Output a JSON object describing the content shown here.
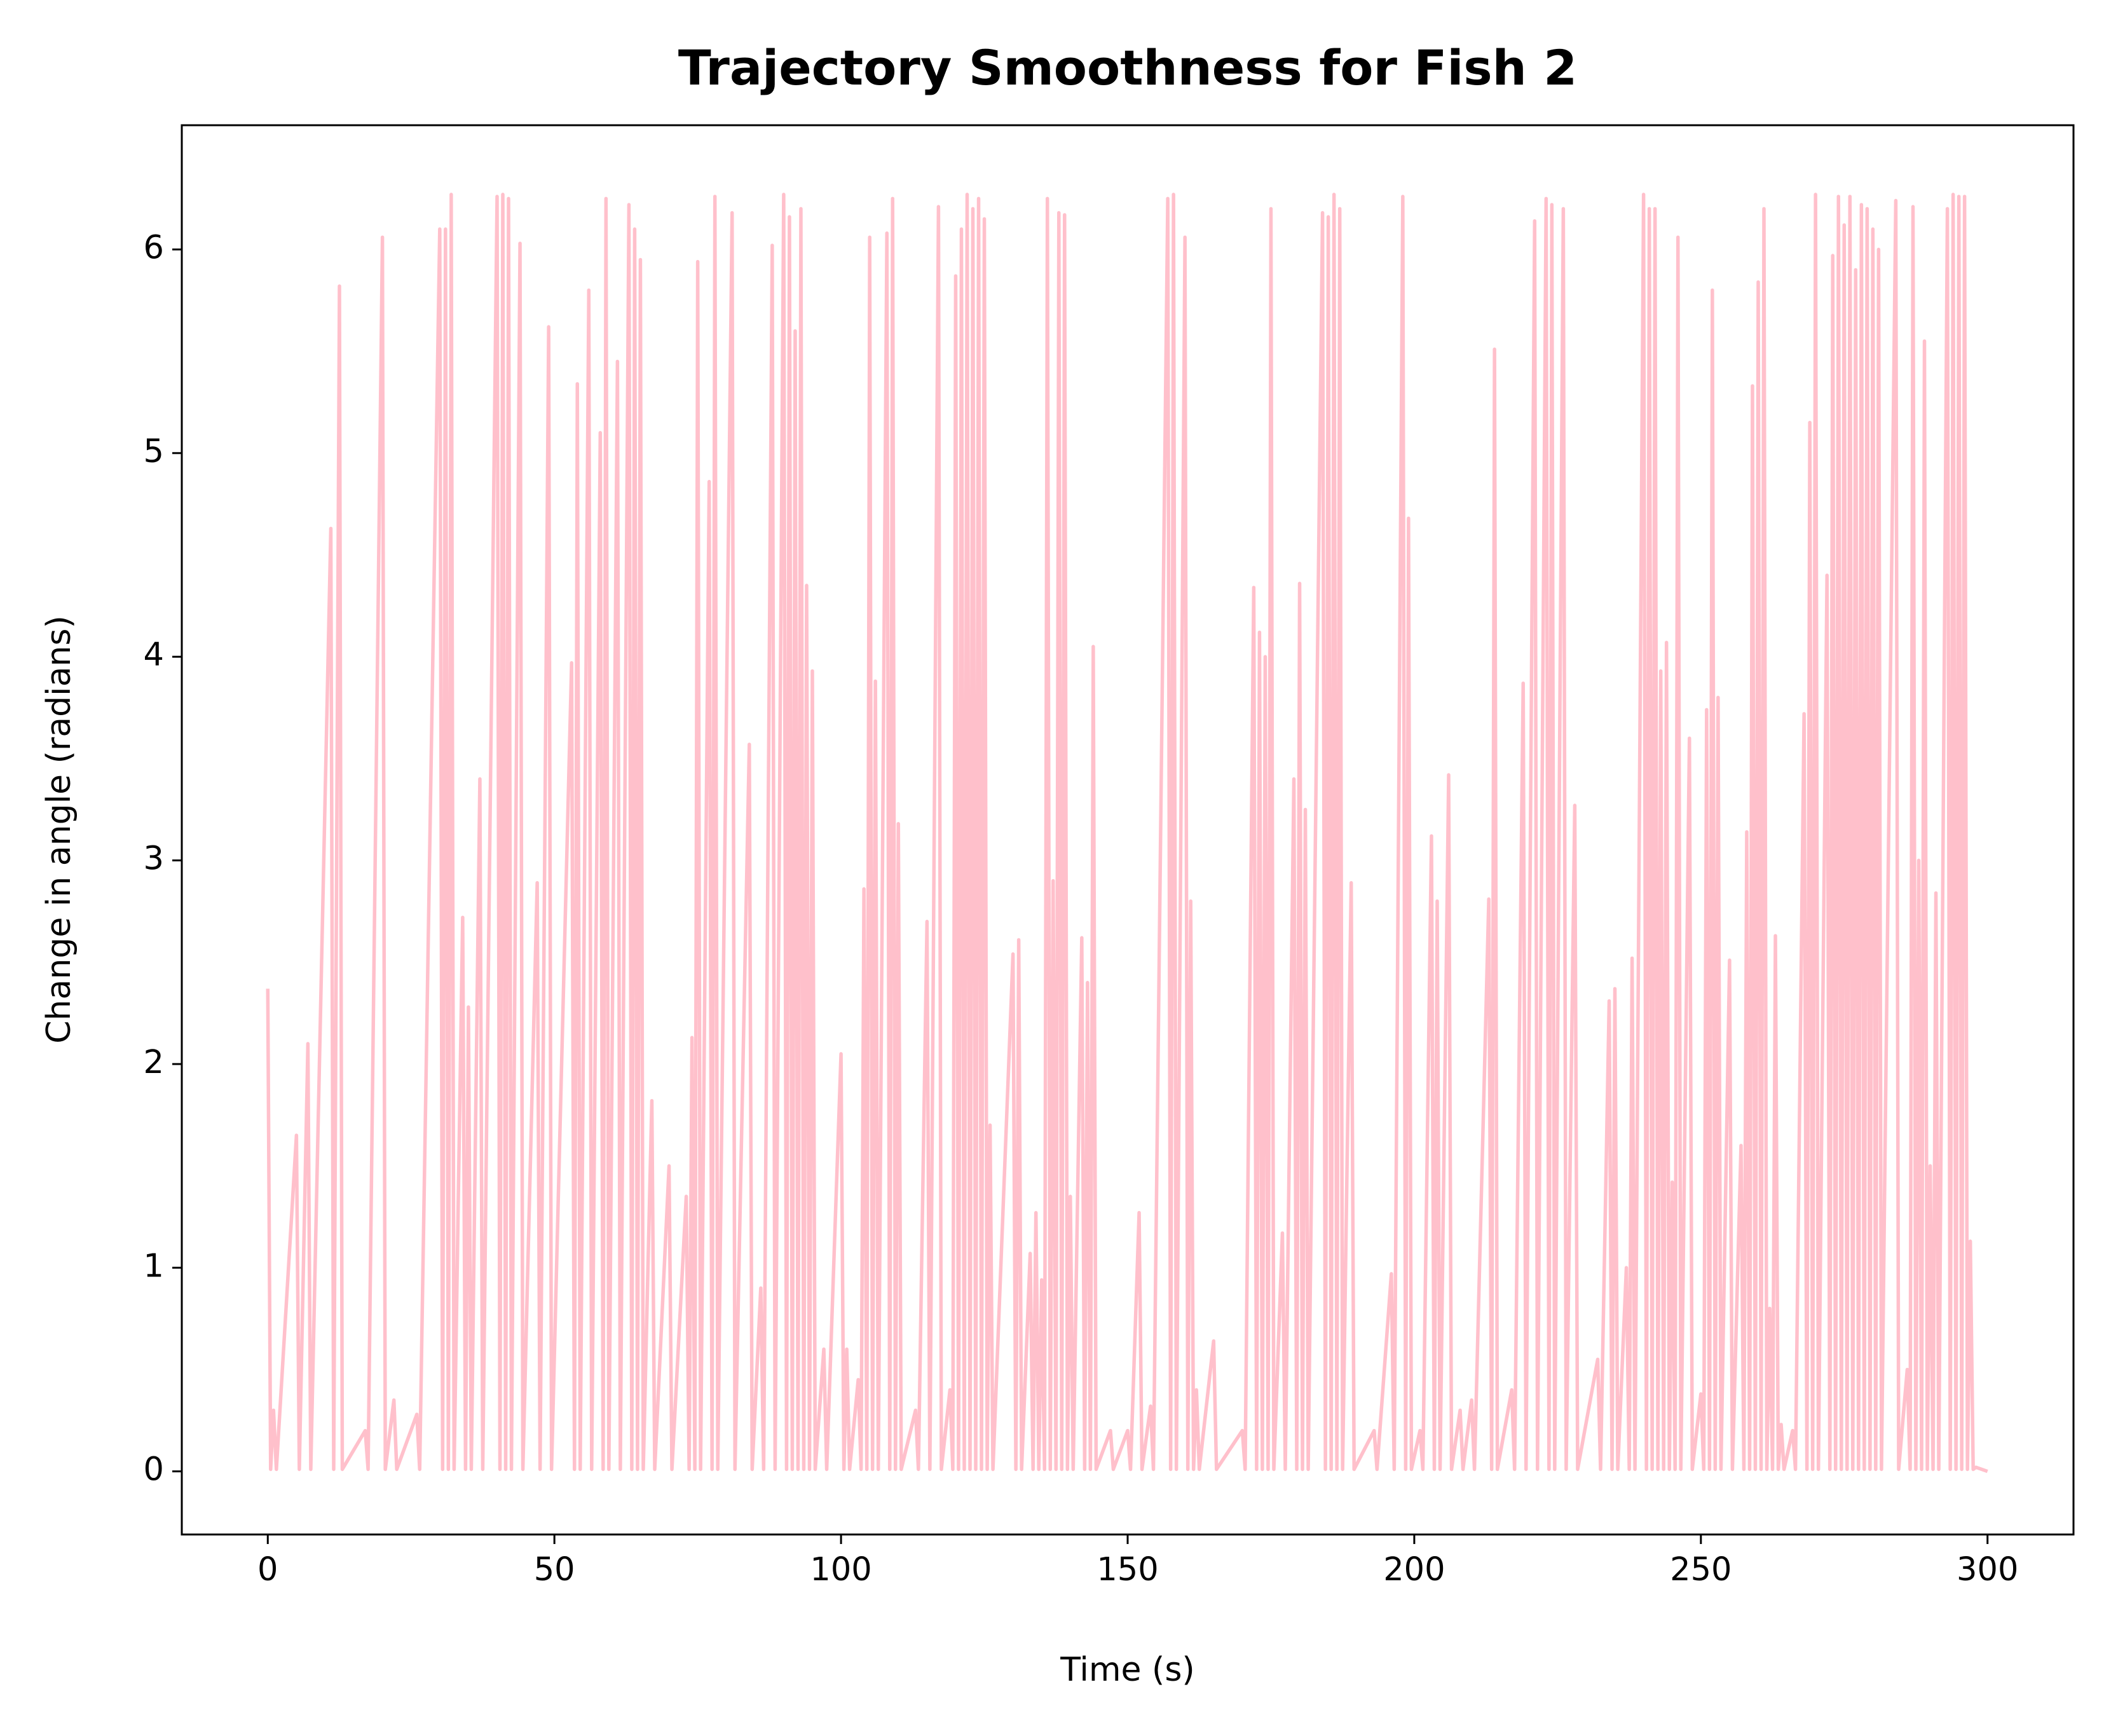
{
  "chart_data": {
    "type": "line",
    "title": "Trajectory Smoothness for Fish 2",
    "x_label": "Time (s)",
    "y_label": "Change in angle (radians)",
    "xlim": [
      -15,
      315
    ],
    "ylim": [
      -0.31,
      6.61
    ],
    "xticks": [
      0,
      50,
      100,
      150,
      200,
      250,
      300
    ],
    "yticks": [
      0,
      1,
      2,
      3,
      4,
      5,
      6
    ],
    "grid": false,
    "series": [
      {
        "color": "#ffc0cb",
        "x": [
          0,
          0.5,
          1,
          1.5,
          5,
          5.5,
          7,
          7.5,
          11,
          11.5,
          12.5,
          13,
          17,
          17.5,
          20,
          20.5,
          22,
          22.5,
          26,
          26.5,
          30,
          30.5,
          31,
          31.5,
          32,
          32.5,
          34,
          34.5,
          35,
          35.5,
          37,
          37.5,
          40,
          40.5,
          41,
          41.5,
          42,
          42.5,
          44,
          44.5,
          47,
          47.5,
          49,
          49.5,
          53,
          53.5,
          54,
          54.5,
          56,
          56.5,
          58,
          58.5,
          59,
          59.5,
          61,
          61.5,
          63,
          63.5,
          64,
          64.5,
          65,
          65.5,
          67,
          67.5,
          70,
          70.5,
          73,
          73.5,
          74,
          74.5,
          75,
          75.5,
          77,
          77.5,
          78,
          78.5,
          81,
          81.5,
          84,
          84.5,
          86,
          86.5,
          88,
          88.5,
          90,
          90.5,
          91,
          91.5,
          92,
          92.5,
          93,
          93.5,
          94,
          94.5,
          95,
          95.5,
          97,
          97.5,
          100,
          100.5,
          101,
          101.5,
          103,
          103.5,
          104,
          104.5,
          105,
          105.5,
          106,
          106.5,
          108,
          108.5,
          109,
          109.5,
          110,
          110.5,
          113,
          113.5,
          115,
          115.5,
          117,
          117.5,
          119,
          119.5,
          120,
          120.5,
          121,
          121.5,
          122,
          122.5,
          123,
          123.5,
          124,
          124.5,
          125,
          125.5,
          126,
          126.5,
          130,
          130.5,
          131,
          131.5,
          133,
          133.5,
          134,
          134.5,
          135,
          135.5,
          136,
          136.5,
          137,
          137.5,
          138,
          138.5,
          139,
          139.5,
          140,
          140.5,
          142,
          142.5,
          143,
          143.5,
          144,
          144.5,
          147,
          147.5,
          150,
          150.5,
          152,
          152.5,
          154,
          154.5,
          157,
          157.5,
          158,
          158.5,
          160,
          160.5,
          161,
          161.5,
          162,
          162.5,
          165,
          165.5,
          170,
          170.5,
          172,
          172.5,
          173,
          173.5,
          174,
          174.5,
          175,
          175.5,
          177,
          177.5,
          179,
          179.5,
          180,
          180.5,
          181,
          181.5,
          184,
          184.5,
          185,
          185.5,
          186,
          186.5,
          187,
          187.5,
          189,
          189.5,
          193,
          193.5,
          196,
          196.5,
          198,
          198.5,
          199,
          199.5,
          201,
          201.5,
          203,
          203.5,
          204,
          204.5,
          206,
          206.5,
          208,
          208.5,
          210,
          210.5,
          213,
          213.5,
          214,
          214.5,
          217,
          217.5,
          219,
          219.5,
          221,
          221.5,
          223,
          223.5,
          224,
          224.5,
          226,
          226.5,
          228,
          228.5,
          232,
          232.5,
          234,
          234.5,
          235,
          235.5,
          237,
          237.5,
          238,
          238.5,
          240,
          240.5,
          241,
          241.5,
          242,
          242.5,
          243,
          243.5,
          244,
          244.5,
          245,
          245.5,
          246,
          246.5,
          248,
          248.5,
          250,
          250.5,
          251,
          251.5,
          252,
          252.5,
          253,
          253.5,
          255,
          255.5,
          257,
          257.5,
          258,
          258.5,
          259,
          259.5,
          260,
          260.5,
          261,
          261.5,
          262,
          262.5,
          263,
          263.5,
          264,
          264.5,
          266,
          266.5,
          268,
          268.5,
          269,
          269.5,
          270,
          270.5,
          272,
          272.5,
          273,
          273.5,
          274,
          274.5,
          275,
          275.5,
          276,
          276.5,
          277,
          277.5,
          278,
          278.5,
          279,
          279.5,
          280,
          280.5,
          281,
          281.5,
          284,
          284.5,
          286,
          286.5,
          287,
          287.5,
          288,
          288.5,
          289,
          289.5,
          290,
          290.5,
          291,
          291.5,
          293,
          293.5,
          294,
          294.5,
          295,
          295.5,
          296,
          296.5,
          297,
          297.5,
          298,
          300
        ],
        "values": [
          2.37,
          0.01,
          0.3,
          0.01,
          1.65,
          0.01,
          2.1,
          0.01,
          4.63,
          0.01,
          5.82,
          0.01,
          0.2,
          0.01,
          6.06,
          0.01,
          0.35,
          0.01,
          0.28,
          0.01,
          6.1,
          0.01,
          6.1,
          0.01,
          6.27,
          0.01,
          2.72,
          0.01,
          2.28,
          0.01,
          3.4,
          0.01,
          6.26,
          0.01,
          6.27,
          0.01,
          6.25,
          0.01,
          6.03,
          0.01,
          2.89,
          0.01,
          5.62,
          0.01,
          3.97,
          0.01,
          5.34,
          0.01,
          5.8,
          0.01,
          5.1,
          0.01,
          6.25,
          0.01,
          5.45,
          0.01,
          6.22,
          0.01,
          6.1,
          0.01,
          5.95,
          0.01,
          1.82,
          0.01,
          1.5,
          0.01,
          1.35,
          0.01,
          2.13,
          0.01,
          5.94,
          0.01,
          4.86,
          0.01,
          6.26,
          0.01,
          6.18,
          0.01,
          3.57,
          0.01,
          0.9,
          0.01,
          6.02,
          0.01,
          6.27,
          0.01,
          6.16,
          0.01,
          5.6,
          0.01,
          6.2,
          0.01,
          4.35,
          0.01,
          3.93,
          0.01,
          0.6,
          0.01,
          2.05,
          0.01,
          0.6,
          0.01,
          0.45,
          0.01,
          2.86,
          0.01,
          6.06,
          0.01,
          3.88,
          0.01,
          6.08,
          0.01,
          6.25,
          0.01,
          3.18,
          0.01,
          0.3,
          0.01,
          2.7,
          0.01,
          6.21,
          0.01,
          0.4,
          0.01,
          5.87,
          0.01,
          6.1,
          0.01,
          6.27,
          0.01,
          6.2,
          0.01,
          6.25,
          0.01,
          6.15,
          0.01,
          1.7,
          0.01,
          2.54,
          0.01,
          2.61,
          0.01,
          1.07,
          0.01,
          1.27,
          0.01,
          0.94,
          0.01,
          6.25,
          0.01,
          2.9,
          0.01,
          6.18,
          0.01,
          6.17,
          0.01,
          1.35,
          0.01,
          2.62,
          0.01,
          2.4,
          0.01,
          4.05,
          0.01,
          0.2,
          0.01,
          0.2,
          0.01,
          1.27,
          0.01,
          0.32,
          0.01,
          6.25,
          0.01,
          6.27,
          0.01,
          6.06,
          0.01,
          2.8,
          0.01,
          0.4,
          0.01,
          0.64,
          0.01,
          0.2,
          0.01,
          4.34,
          0.01,
          4.12,
          0.01,
          4.0,
          0.01,
          6.2,
          0.01,
          1.17,
          0.01,
          3.4,
          0.01,
          4.36,
          0.01,
          3.25,
          0.01,
          6.18,
          0.01,
          6.16,
          0.01,
          6.27,
          0.01,
          6.2,
          0.01,
          2.89,
          0.01,
          0.2,
          0.01,
          0.97,
          0.01,
          6.26,
          0.01,
          4.68,
          0.01,
          0.2,
          0.01,
          3.12,
          0.01,
          2.8,
          0.01,
          3.42,
          0.01,
          0.3,
          0.01,
          0.35,
          0.01,
          2.81,
          0.01,
          5.51,
          0.01,
          0.4,
          0.01,
          3.87,
          0.01,
          6.14,
          0.01,
          6.25,
          0.01,
          6.22,
          0.01,
          6.2,
          0.01,
          3.27,
          0.01,
          0.55,
          0.01,
          2.31,
          0.01,
          2.37,
          0.01,
          1.0,
          0.01,
          2.52,
          0.01,
          6.27,
          0.01,
          6.2,
          0.01,
          6.2,
          0.01,
          3.93,
          0.01,
          4.07,
          0.01,
          1.42,
          0.01,
          6.06,
          0.01,
          3.6,
          0.01,
          0.38,
          0.01,
          3.74,
          0.01,
          5.8,
          0.01,
          3.8,
          0.01,
          2.51,
          0.01,
          1.6,
          0.01,
          3.14,
          0.01,
          5.33,
          0.01,
          5.84,
          0.01,
          6.2,
          0.01,
          0.8,
          0.01,
          2.63,
          0.01,
          0.23,
          0.01,
          0.2,
          0.01,
          3.72,
          0.01,
          5.15,
          0.01,
          6.27,
          0.01,
          4.4,
          0.01,
          5.97,
          0.01,
          6.26,
          0.01,
          6.12,
          0.01,
          6.26,
          0.01,
          5.9,
          0.01,
          6.22,
          0.01,
          6.2,
          0.01,
          6.1,
          0.01,
          6.0,
          0.01,
          6.24,
          0.01,
          0.5,
          0.01,
          6.21,
          0.01,
          3.0,
          0.01,
          5.55,
          0.01,
          1.5,
          0.01,
          2.84,
          0.01,
          6.2,
          0.01,
          6.27,
          0.01,
          6.26,
          0.01,
          6.26,
          0.01,
          1.13,
          0.01,
          0.02,
          0
        ]
      }
    ]
  }
}
